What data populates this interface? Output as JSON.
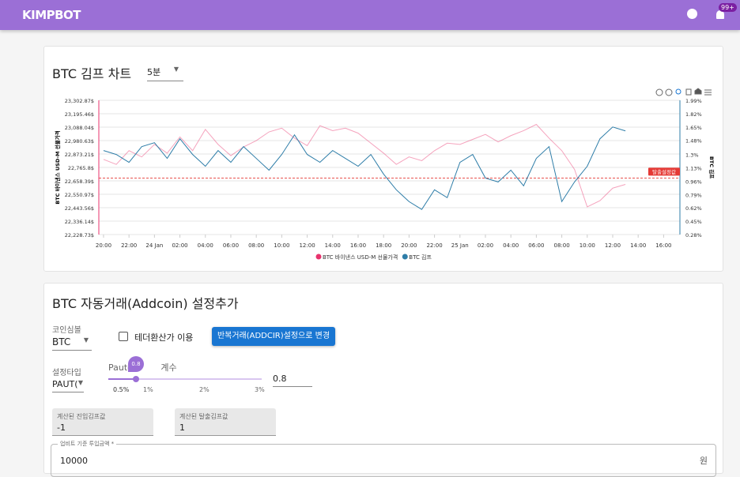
{
  "header": {
    "title": "KIMPBOT",
    "notification_badge": "99+"
  },
  "chart_card": {
    "title": "BTC 김프 차트",
    "interval": "5분",
    "chart": {
      "type": "line",
      "x": [
        0,
        1,
        2,
        3,
        4,
        5,
        6,
        7,
        8,
        9,
        10,
        11,
        12,
        13,
        14,
        15,
        16,
        17,
        18,
        19,
        20,
        21,
        22,
        23,
        24,
        25,
        26,
        27,
        28,
        29,
        30,
        31,
        32,
        33,
        34,
        35,
        36,
        37,
        38,
        39,
        40,
        41
      ],
      "xlim": [
        -0.37,
        45.28
      ],
      "xticks": [
        {
          "value": 0,
          "label": "20:00"
        },
        {
          "value": 2,
          "label": "22:00"
        },
        {
          "value": 4,
          "label": "24 Jan"
        },
        {
          "value": 6,
          "label": "02:00"
        },
        {
          "value": 8,
          "label": "04:00"
        },
        {
          "value": 10,
          "label": "06:00"
        },
        {
          "value": 12,
          "label": "08:00"
        },
        {
          "value": 14,
          "label": "10:00"
        },
        {
          "value": 16,
          "label": "12:00"
        },
        {
          "value": 18,
          "label": "14:00"
        },
        {
          "value": 20,
          "label": "16:00"
        },
        {
          "value": 22,
          "label": "18:00"
        },
        {
          "value": 24,
          "label": "20:00"
        },
        {
          "value": 26,
          "label": "22:00"
        },
        {
          "value": 28,
          "label": "25 Jan"
        },
        {
          "value": 30,
          "label": "02:00"
        },
        {
          "value": 32,
          "label": "04:00"
        },
        {
          "value": 34,
          "label": "06:00"
        },
        {
          "value": 36,
          "label": "08:00"
        },
        {
          "value": 38,
          "label": "10:00"
        },
        {
          "value": 40,
          "label": "12:00"
        },
        {
          "value": 42,
          "label": "14:00"
        },
        {
          "value": 44,
          "label": "16:00"
        }
      ],
      "ylabel": "BTC 바이낸스 USD-M 선물가격",
      "y2label": "BTC 김프",
      "ylim": [
        22228.73,
        23302.87
      ],
      "yticks": [
        {
          "value": 22228.73,
          "label": "22,228.73$"
        },
        {
          "value": 22336.14,
          "label": "22,336.14$"
        },
        {
          "value": 22443.56,
          "label": "22,443.56$"
        },
        {
          "value": 22550.97,
          "label": "22,550.97$"
        },
        {
          "value": 22658.39,
          "label": "22,658.39$"
        },
        {
          "value": 22765.8,
          "label": "22,765.8$"
        },
        {
          "value": 22873.21,
          "label": "22,873.21$"
        },
        {
          "value": 22980.63,
          "label": "22,980.63$"
        },
        {
          "value": 23088.04,
          "label": "23,088.04$"
        },
        {
          "value": 23195.46,
          "label": "23,195.46$"
        },
        {
          "value": 23302.87,
          "label": "23,302.87$"
        }
      ],
      "y2lim": [
        0.28,
        1.99
      ],
      "y2ticks": [
        {
          "value": 0.28,
          "label": "0.28%"
        },
        {
          "value": 0.45,
          "label": "0.45%"
        },
        {
          "value": 0.62,
          "label": "0.62%"
        },
        {
          "value": 0.79,
          "label": "0.79%"
        },
        {
          "value": 0.96,
          "label": "0.96%"
        },
        {
          "value": 1.13,
          "label": "1.13%"
        },
        {
          "value": 1.3,
          "label": "1.3%"
        },
        {
          "value": 1.48,
          "label": "1.48%"
        },
        {
          "value": 1.65,
          "label": "1.65%"
        },
        {
          "value": 1.82,
          "label": "1.82%"
        },
        {
          "value": 1.99,
          "label": "1.99%"
        }
      ],
      "grid": true,
      "series": [
        {
          "name": "BTC 바이낸스 USD-M 선물가격",
          "color": "#e8336d",
          "values": [
            22830,
            22790,
            22900,
            22850,
            22950,
            22880,
            23010,
            22900,
            23070,
            22950,
            22860,
            22930,
            22980,
            23050,
            23080,
            23000,
            22940,
            23100,
            23060,
            23080,
            23040,
            22960,
            22880,
            22790,
            22850,
            22820,
            22900,
            22960,
            22950,
            22990,
            23030,
            22970,
            23020,
            23060,
            23110,
            23000,
            22900,
            22750,
            22450,
            22500,
            22600,
            22630
          ]
        },
        {
          "name": "BTC 김프",
          "color": "#2e7da8",
          "axis": "y2",
          "values": [
            1.35,
            1.3,
            1.2,
            1.4,
            1.45,
            1.25,
            1.5,
            1.3,
            1.15,
            1.35,
            1.2,
            1.4,
            1.25,
            1.1,
            1.3,
            1.55,
            1.3,
            1.2,
            1.35,
            1.25,
            1.15,
            1.3,
            1.05,
            0.85,
            0.7,
            0.6,
            0.85,
            0.75,
            1.2,
            1.3,
            1.0,
            0.95,
            1.1,
            0.9,
            1.25,
            1.4,
            0.7,
            0.95,
            1.15,
            1.5,
            1.65,
            1.6
          ]
        }
      ],
      "annotation": {
        "label": "탈출설정값",
        "value": 1,
        "axis": "y2"
      }
    }
  },
  "form": {
    "title": "BTC 자동거래(Addcoin) 설정추가",
    "coin_symbol": {
      "label": "코인심볼",
      "value": "BTC"
    },
    "tether_checkbox": "테더환산가 이용",
    "switch_button": "반복거래(ADDCIR)설정으로 변경",
    "setting_type": {
      "label": "설정타입",
      "value": "PAUT("
    },
    "slider": {
      "label": "Pauto 계수",
      "value_bubble": "0.8",
      "marks": [
        "0.5%",
        "1%",
        "2%",
        "3%"
      ],
      "input": "0.8"
    },
    "entry_kimp": {
      "label": "계산된 진입김프값",
      "value": "-1"
    },
    "exit_kimp": {
      "label": "계산된 탈출김프값",
      "value": "1"
    },
    "amount": {
      "label": "업비트 기준 투입금액 *",
      "value": "10000",
      "suffix": "원"
    }
  }
}
